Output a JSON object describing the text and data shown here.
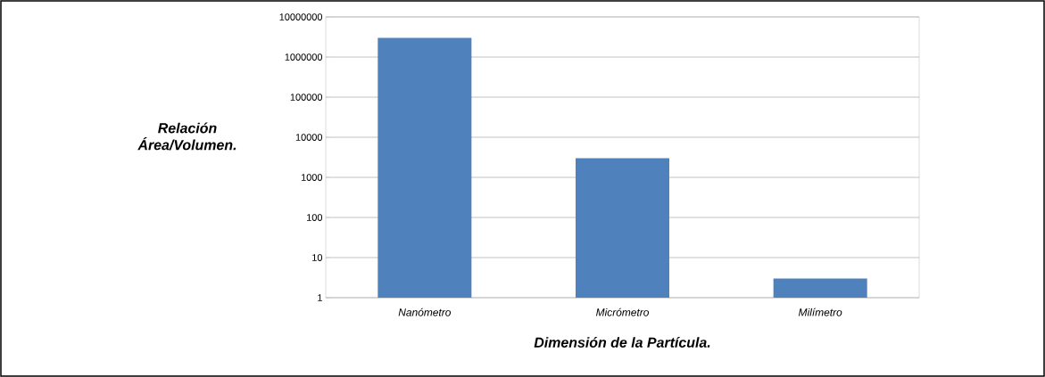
{
  "chart_data": {
    "type": "bar",
    "xlabel": "Dimensión de la Partícula.",
    "ylabel": "Relación Área/Volumen.",
    "categories": [
      "Nanómetro",
      "Micrómetro",
      "Milímetro"
    ],
    "values": [
      3000000,
      3000,
      3
    ],
    "color": "#4f81bd",
    "log": "y",
    "ylim": [
      1,
      10000000
    ],
    "yticks": [
      1,
      10,
      100,
      1000,
      10000,
      100000,
      1000000,
      10000000
    ],
    "grid": "y"
  }
}
